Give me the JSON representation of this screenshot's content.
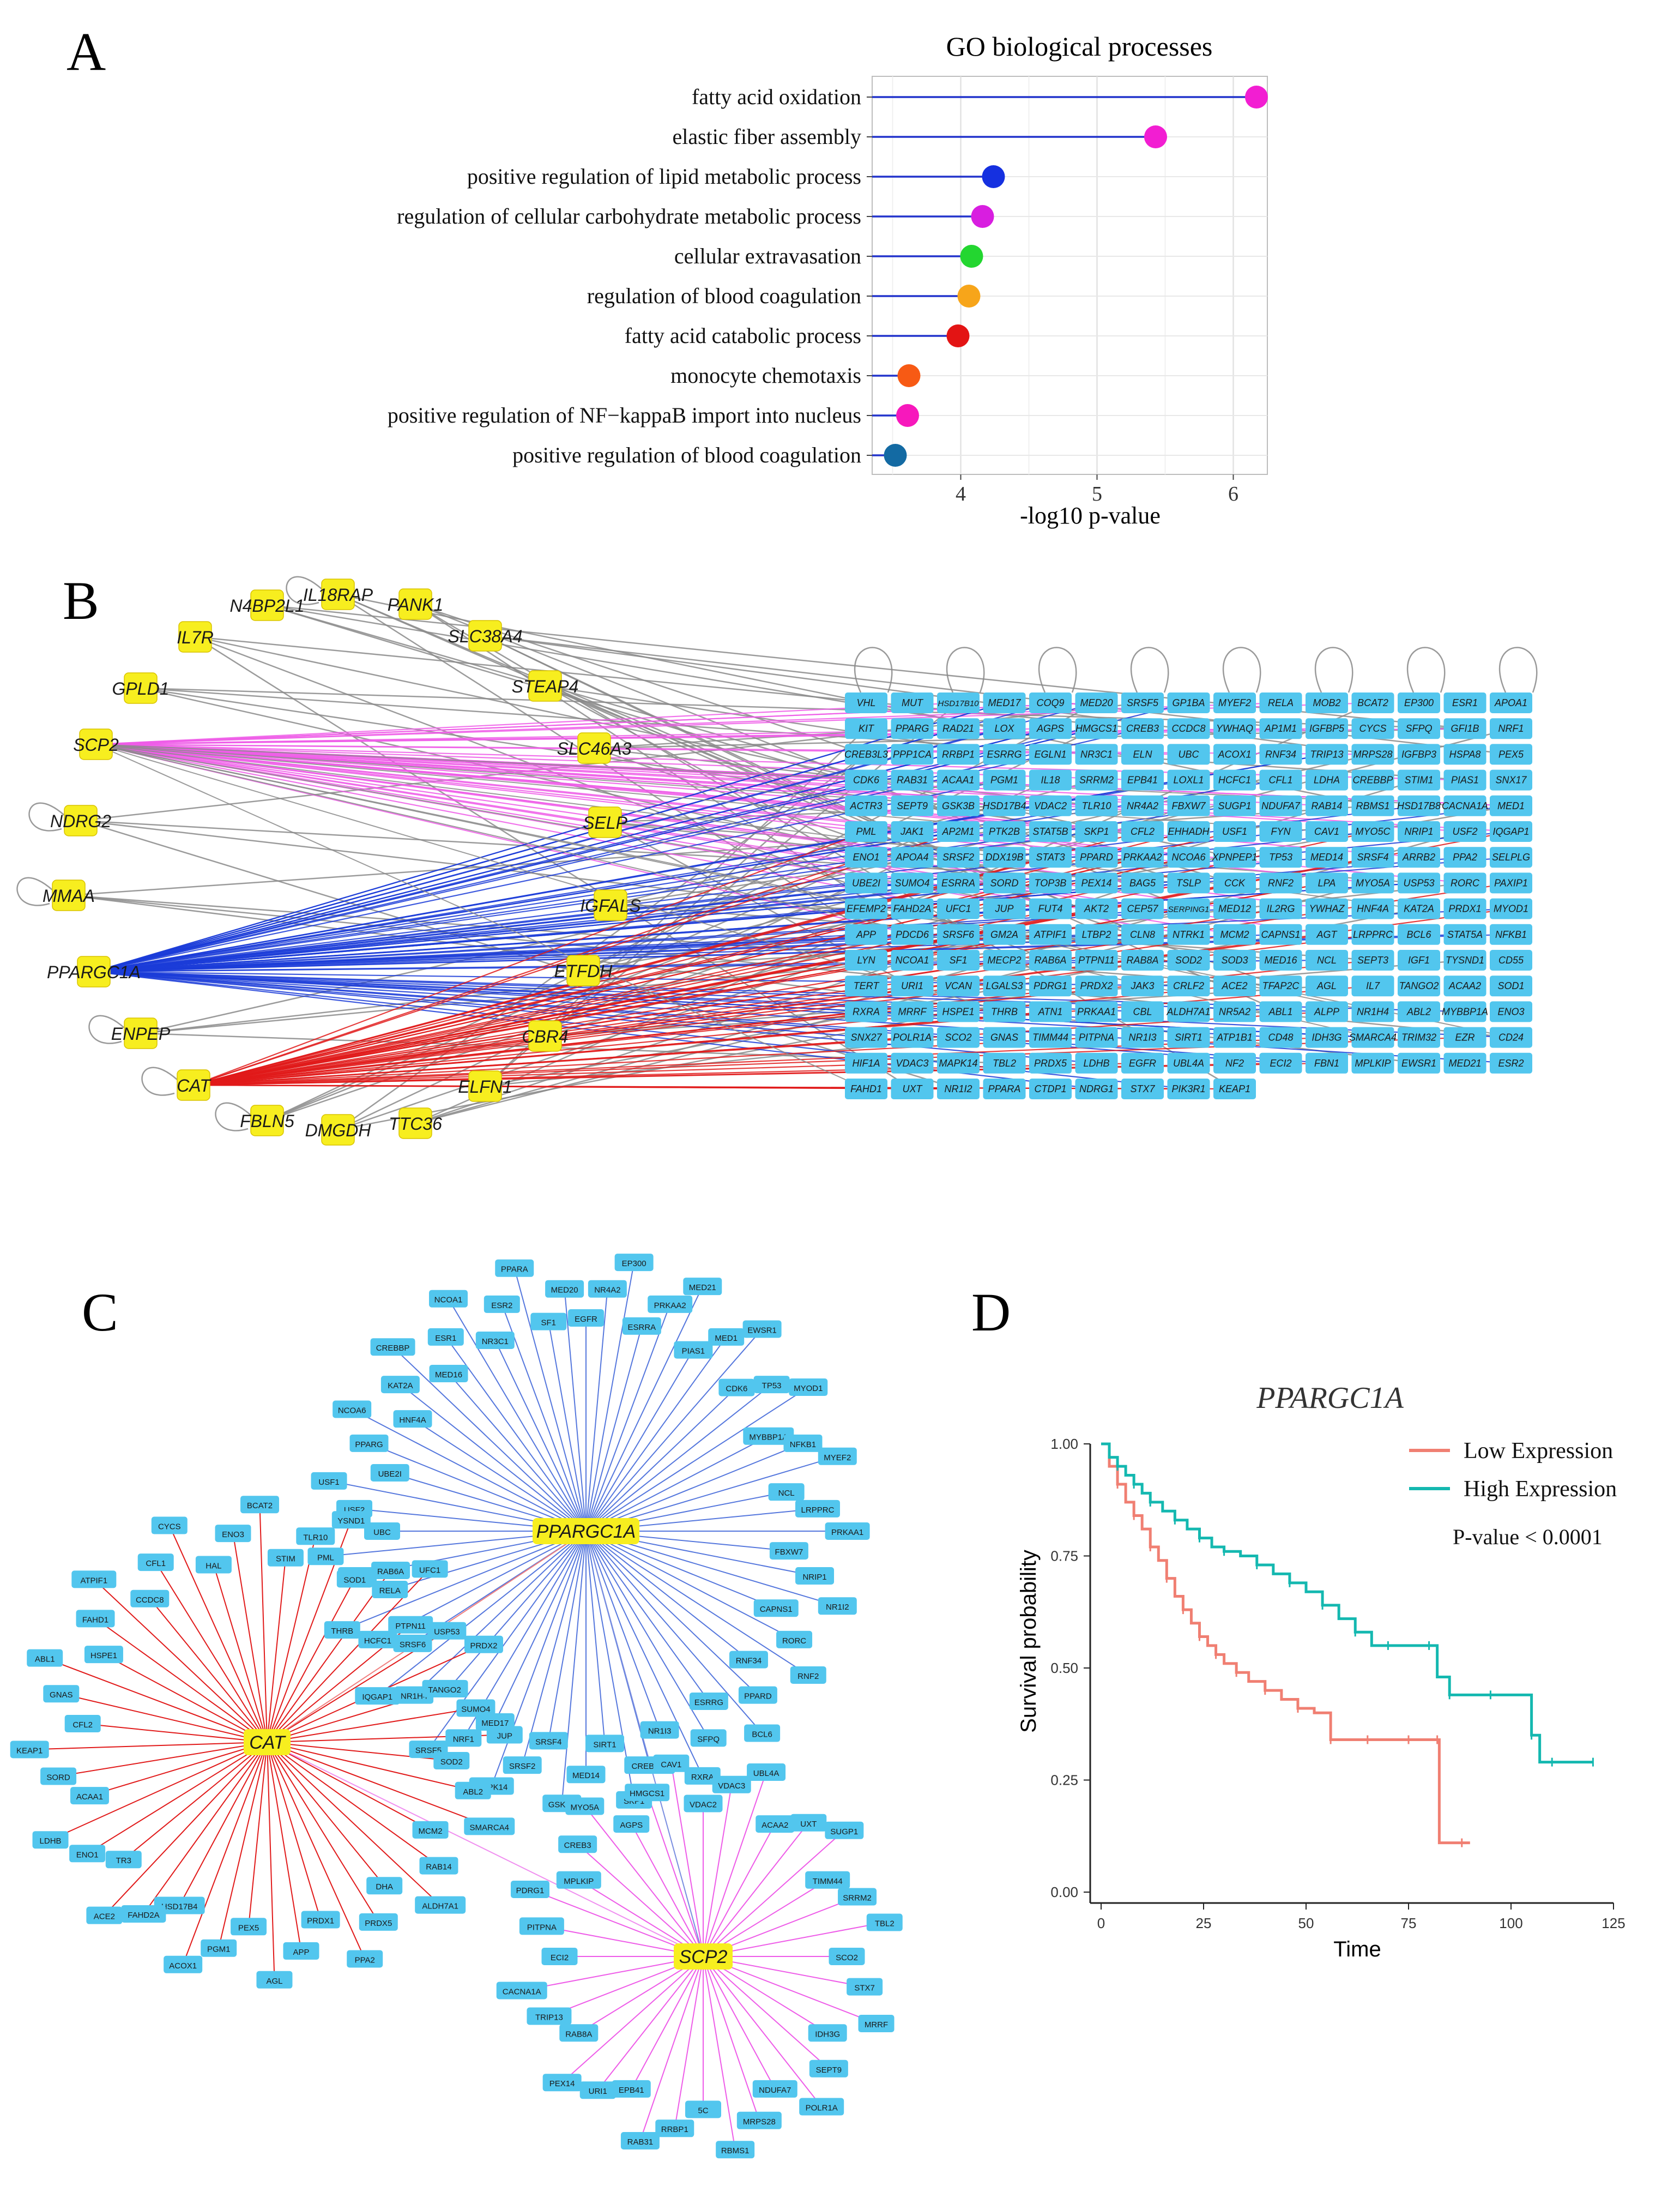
{
  "panels": {
    "a": "A",
    "b": "B",
    "c": "C",
    "d": "D"
  },
  "colors": {
    "stem": "#2233cc",
    "node_yellow": "#f7ee1f",
    "node_blue": "#52c6ee",
    "edge_gray": "#8a8a8a",
    "edge_pink": "#ee5ce8",
    "edge_blue": "#1b3cd8",
    "edge_red": "#e11a1a",
    "low": "#f07f72",
    "high": "#14b8b0"
  },
  "chart_data": [
    {
      "type": "lollipop",
      "title": "GO biological processes",
      "xlabel": "-log10 p-value",
      "xlim": [
        3.35,
        6.25
      ],
      "xticks": [
        4,
        5,
        6
      ],
      "categories": [
        "fatty acid oxidation",
        "elastic fiber assembly",
        "positive regulation of lipid metabolic process",
        "regulation of cellular carbohydrate metabolic process",
        "cellular extravasation",
        "regulation of blood coagulation",
        "fatty acid catabolic process",
        "monocyte chemotaxis",
        "positive regulation of NF−kappaB import into nucleus",
        "positive regulation of blood coagulation"
      ],
      "values": [
        6.17,
        5.43,
        4.24,
        4.16,
        4.08,
        4.06,
        3.98,
        3.62,
        3.61,
        3.52
      ],
      "point_colors": [
        "#f21ed2",
        "#f21ed2",
        "#1530e0",
        "#d81ee0",
        "#23d630",
        "#f7a51a",
        "#e31414",
        "#f75a14",
        "#f718bc",
        "#136aa3"
      ]
    },
    {
      "type": "network",
      "title": "",
      "left_genes": [
        "N4BP2L1",
        "IL18RAP",
        "PANK1",
        "IL7R",
        "SLC38A4",
        "GPLD1",
        "STEAP4",
        "SCP2",
        "SLC46A3",
        "NDRG2",
        "SELP",
        "MMAA",
        "IGFALS",
        "PPARGC1A",
        "ETFDH",
        "ENPEP",
        "CBR4",
        "CAT",
        "ELFN1",
        "FBLN5",
        "DMGDH",
        "TTC36"
      ],
      "grid_rows": [
        [
          "VHL",
          "MUT",
          "HSD17B10",
          "MED17",
          "COQ9",
          "MED20",
          "SRSF5",
          "GP1BA",
          "MYEF2",
          "RELA",
          "MOB2",
          "BCAT2",
          "EP300",
          "ESR1",
          "APOA1"
        ],
        [
          "KIT",
          "PPARG",
          "RAD21",
          "LOX",
          "AGPS",
          "HMGCS1",
          "CREB3",
          "CCDC8",
          "YWHAQ",
          "AP1M1",
          "IGFBP5",
          "CYCS",
          "SFPQ",
          "GFI1B",
          "NRF1"
        ],
        [
          "CREB3L3",
          "PPP1CA",
          "RRBP1",
          "ESRRG",
          "EGLN1",
          "NR3C1",
          "ELN",
          "UBC",
          "ACOX1",
          "RNF34",
          "TRIP13",
          "MRPS28",
          "IGFBP3",
          "HSPA8",
          "PEX5"
        ],
        [
          "CDK6",
          "RAB31",
          "ACAA1",
          "PGM1",
          "IL18",
          "SRRM2",
          "EPB41",
          "LOXL1",
          "HCFC1",
          "CFL1",
          "LDHA",
          "CREBBP",
          "STIM1",
          "PIAS1",
          "SNX17"
        ],
        [
          "ACTR3",
          "SEPT9",
          "GSK3B",
          "HSD17B4",
          "VDAC2",
          "TLR10",
          "NR4A2",
          "FBXW7",
          "SUGP1",
          "NDUFA7",
          "RAB14",
          "RBMS1",
          "HSD17B8",
          "CACNA1A",
          "MED1"
        ],
        [
          "PML",
          "JAK1",
          "AP2M1",
          "PTK2B",
          "STAT5B",
          "SKP1",
          "CFL2",
          "EHHADH",
          "USF1",
          "FYN",
          "CAV1",
          "MYO5C",
          "NRIP1",
          "USF2",
          "IQGAP1"
        ],
        [
          "ENO1",
          "APOA4",
          "SRSF2",
          "DDX19B",
          "STAT3",
          "PPARD",
          "PRKAA2",
          "NCOA6",
          "XPNPEP1",
          "TP53",
          "MED14",
          "SRSF4",
          "ARRB2",
          "PPA2",
          "SELPLG"
        ],
        [
          "UBE2I",
          "SUMO4",
          "ESRRA",
          "SORD",
          "TOP3B",
          "PEX14",
          "BAG5",
          "TSLP",
          "CCK",
          "RNF2",
          "LPA",
          "MYO5A",
          "USP53",
          "RORC",
          "PAXIP1"
        ],
        [
          "EFEMP2",
          "FAHD2A",
          "UFC1",
          "JUP",
          "FUT4",
          "AKT2",
          "CEP57",
          "SERPING1",
          "MED12",
          "IL2RG",
          "YWHAZ",
          "HNF4A",
          "KAT2A",
          "PRDX1",
          "MYOD1"
        ],
        [
          "APP",
          "PDCD6",
          "SRSF6",
          "GM2A",
          "ATPIF1",
          "LTBP2",
          "CLN8",
          "NTRK1",
          "MCM2",
          "CAPNS1",
          "AGT",
          "LRPPRC",
          "BCL6",
          "STAT5A",
          "NFKB1"
        ],
        [
          "LYN",
          "NCOA1",
          "SF1",
          "MECP2",
          "RAB6A",
          "PTPN11",
          "RAB8A",
          "SOD2",
          "SOD3",
          "MED16",
          "NCL",
          "SEPT3",
          "IGF1",
          "TYSND1",
          "CD55"
        ],
        [
          "TERT",
          "URI1",
          "VCAN",
          "LGALS3",
          "PDRG1",
          "PRDX2",
          "JAK3",
          "CRLF2",
          "ACE2",
          "TFAP2C",
          "AGL",
          "IL7",
          "TANGO2",
          "ACAA2",
          "SOD1"
        ],
        [
          "RXRA",
          "MRRF",
          "HSPE1",
          "THRB",
          "ATN1",
          "PRKAA1",
          "CBL",
          "ALDH7A1",
          "NR5A2",
          "ABL1",
          "ALPP",
          "NR1H4",
          "ABL2",
          "MYBBP1A",
          "ENO3"
        ],
        [
          "SNX27",
          "POLR1A",
          "SCO2",
          "GNAS",
          "TIMM44",
          "PITPNA",
          "NR1I3",
          "SIRT1",
          "ATP1B1",
          "CD48",
          "IDH3G",
          "SMARCA4",
          "TRIM32",
          "EZR",
          "CD24"
        ],
        [
          "HIF1A",
          "VDAC3",
          "MAPK14",
          "TBL2",
          "PRDX5",
          "LDHB",
          "EGFR",
          "UBL4A",
          "NF2",
          "ECI2",
          "FBN1",
          "MPLKIP",
          "EWSR1",
          "MED21",
          "ESR2"
        ],
        [
          "FAHD1",
          "UXT",
          "NR1I2",
          "PPARA",
          "CTDP1",
          "NDRG1",
          "STX7",
          "PIK3R1",
          "KEAP1"
        ]
      ]
    },
    {
      "type": "network",
      "title": "",
      "hubs": [
        "PPARGC1A",
        "CAT",
        "SCP2"
      ],
      "ppargc1a_neighbors": [
        "EGFR",
        "NR4A2",
        "EP300",
        "ESRRA",
        "PRKAA2",
        "MED21",
        "PIAS1",
        "MED1",
        "EWSR1",
        "CDK6",
        "TP53",
        "MYOD1",
        "MYBBP1A",
        "NFKB1",
        "MYEF2",
        "NCL",
        "LRPPRC",
        "PRKAA1",
        "FBXW7",
        "NRIP1",
        "NR1I2",
        "CAPNS1",
        "RORC",
        "RNF2",
        "RNF34",
        "PPARD",
        "BCL6",
        "ESRRG",
        "SFPQ",
        "RXRA",
        "NR1I3",
        "CREB3L3",
        "SKP1",
        "SIRT1",
        "MED14",
        "GSK3B",
        "SRSF4",
        "SRSF2",
        "MAPK14",
        "MED17",
        "NRF1",
        "SRSF5",
        "NR5A2",
        "NR1H4",
        "IQGAP1",
        "SRSF6",
        "HCFC1",
        "THRB",
        "RELA",
        "MED12",
        "PML",
        "UBC",
        "USF2",
        "USF1",
        "UBE2I",
        "PPARG",
        "NCOA6",
        "HNF4A",
        "KAT2A",
        "CREBBP",
        "MED16",
        "ESR1",
        "NCOA1",
        "NR3C1",
        "ESR2",
        "PPARA",
        "SF1",
        "MED20"
      ],
      "cat_neighbors": [
        "STIM",
        "TLR10",
        "YSND1",
        "SOD1",
        "RAB6A",
        "UFC1",
        "PTPN11",
        "USP53",
        "PRDX2",
        "TANGO2",
        "SUMO4",
        "JUP",
        "SOD2",
        "ABL2",
        "SMARCA4",
        "MCM2",
        "RAB14",
        "ALDH7A1",
        "DHA",
        "PRDX5",
        "PPA2",
        "PRDX1",
        "APP",
        "AGL",
        "PEX5",
        "PGM1",
        "ACOX1",
        "HSD17B4",
        "FAHD2A",
        "ACE2",
        "TR3",
        "ENO1",
        "LDHB",
        "ACAA1",
        "SORD",
        "KEAP1",
        "CFL2",
        "GNAS",
        "ABL1",
        "HSPE1",
        "FAHD1",
        "ATPIF1",
        "CCDC8",
        "CFL1",
        "CYCS",
        "HAL",
        "ENO3",
        "BCAT2"
      ],
      "scp2_neighbors": [
        "VDAC2",
        "VDAC3",
        "UBL4A",
        "ACAA2",
        "UXT",
        "SUGP1",
        "TIMM44",
        "SRRM2",
        "TBL2",
        "SCO2",
        "STX7",
        "MRRF",
        "IDH3G",
        "SEPT9",
        "POLR1A",
        "NDUFA7",
        "MRPS28",
        "RBMS1",
        "5C",
        "RRBP1",
        "RAB31",
        "EPB41",
        "URI1",
        "PEX14",
        "RAB8A",
        "TRIP13",
        "CACNA1A",
        "ECI2",
        "PITPNA",
        "PDRG1",
        "MPLKIP",
        "CREB3",
        "MYO5A",
        "AGPS",
        "HMGCS1",
        "CAV1"
      ]
    },
    {
      "type": "line",
      "subtitle": "PPARGC1A",
      "xlabel": "Time",
      "ylabel": "Survival probability",
      "xlim": [
        0,
        125
      ],
      "ylim": [
        0,
        1
      ],
      "xticks": [
        0,
        25,
        50,
        75,
        100,
        125
      ],
      "yticks": [
        "0.00",
        "0.25",
        "0.50",
        "0.75",
        "1.00"
      ],
      "annotation": "P-value < 0.0001",
      "series": [
        {
          "name": "Low Expression",
          "x": [
            0,
            2,
            4,
            6,
            8,
            10,
            12,
            14,
            16,
            18,
            20,
            22,
            24,
            26,
            28,
            30,
            33,
            36,
            40,
            44,
            48,
            52,
            56,
            60,
            65,
            70,
            75,
            80,
            82,
            82.5,
            88,
            90
          ],
          "y": [
            1.0,
            0.95,
            0.91,
            0.87,
            0.84,
            0.81,
            0.77,
            0.74,
            0.7,
            0.66,
            0.63,
            0.6,
            0.57,
            0.55,
            0.53,
            0.51,
            0.49,
            0.47,
            0.45,
            0.43,
            0.41,
            0.4,
            0.34,
            0.34,
            0.34,
            0.34,
            0.34,
            0.34,
            0.34,
            0.11,
            0.11,
            0.11
          ]
        },
        {
          "name": "High Expression",
          "x": [
            0,
            2,
            4,
            6,
            8,
            10,
            12,
            15,
            18,
            21,
            24,
            27,
            30,
            34,
            38,
            42,
            46,
            50,
            54,
            58,
            62,
            66,
            70,
            74,
            80,
            82,
            85,
            90,
            95,
            100,
            105,
            107,
            110,
            115,
            120
          ],
          "y": [
            1.0,
            0.97,
            0.95,
            0.93,
            0.91,
            0.89,
            0.87,
            0.85,
            0.83,
            0.81,
            0.79,
            0.77,
            0.76,
            0.75,
            0.73,
            0.71,
            0.69,
            0.67,
            0.64,
            0.61,
            0.58,
            0.55,
            0.55,
            0.55,
            0.55,
            0.48,
            0.44,
            0.44,
            0.44,
            0.44,
            0.35,
            0.29,
            0.29,
            0.29,
            0.29
          ]
        }
      ]
    }
  ]
}
